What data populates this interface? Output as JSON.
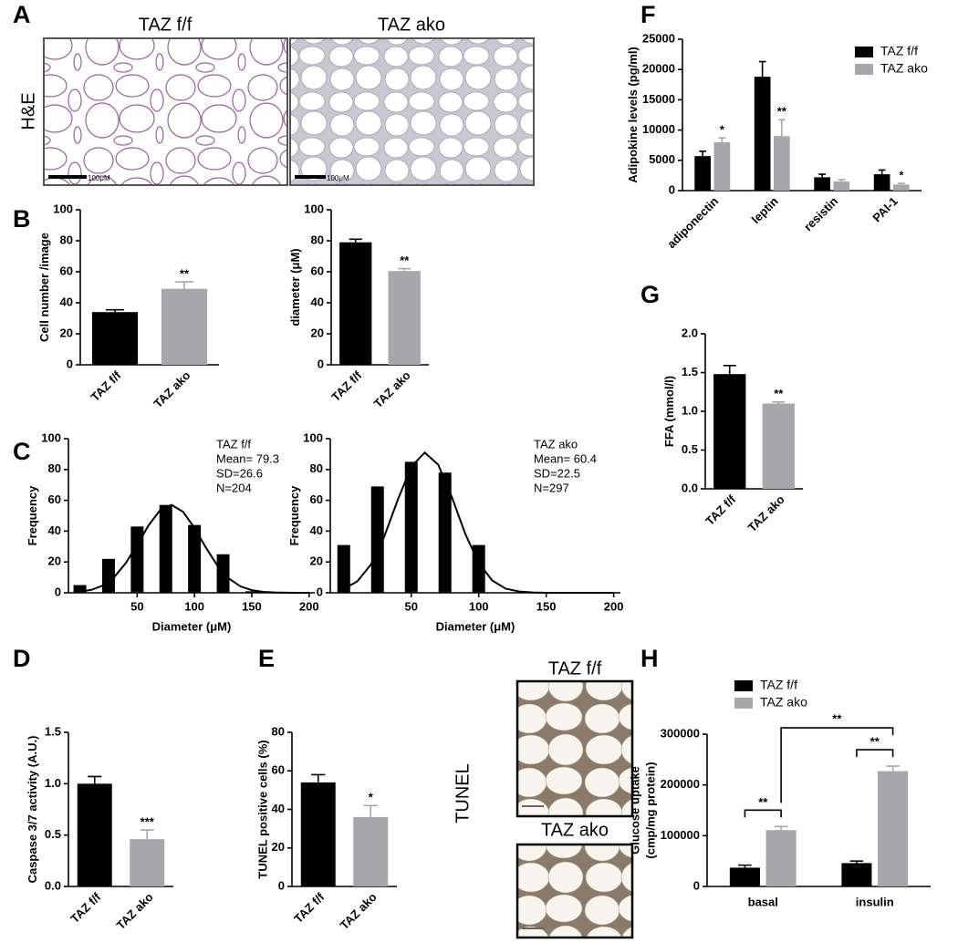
{
  "panel_labels": [
    "A",
    "B",
    "C",
    "D",
    "E",
    "F",
    "G",
    "H"
  ],
  "he_images": {
    "titles": [
      "TAZ f/f",
      "TAZ ako"
    ],
    "stain": "H&E",
    "scale_bars": [
      "100μM",
      "100μM"
    ]
  },
  "tunel_images": {
    "titles": [
      "TAZ f/f",
      "TAZ ako"
    ],
    "stain": "TUNEL"
  },
  "chart_data": [
    {
      "type": "bar",
      "categories": [
        "TAZ f/f",
        "TAZ ako"
      ],
      "values": [
        34,
        49
      ],
      "errors": [
        1.5,
        4.5
      ],
      "colors": [
        "#000000",
        "#a7a7ab"
      ],
      "significance": [
        null,
        "**"
      ],
      "ylabel": "Cell number /image",
      "ylim": [
        0,
        100
      ],
      "yticks": [
        0,
        20,
        40,
        60,
        80,
        100
      ]
    },
    {
      "type": "bar",
      "categories": [
        "TAZ f/f",
        "TAZ ako"
      ],
      "values": [
        79,
        60.5
      ],
      "errors": [
        2,
        1.5
      ],
      "colors": [
        "#000000",
        "#a7a7ab"
      ],
      "significance": [
        null,
        "**"
      ],
      "ylabel": "diameter (μM)",
      "ylim": [
        0,
        100
      ],
      "yticks": [
        0,
        20,
        40,
        60,
        80,
        100
      ]
    },
    {
      "type": "fitted_histogram",
      "x": [
        0,
        25,
        50,
        75,
        100,
        125,
        150
      ],
      "values": [
        5,
        22,
        43,
        57,
        44,
        25,
        1
      ],
      "color": "#000000",
      "fit": {
        "x": [
          0,
          10,
          20,
          30,
          40,
          50,
          60,
          70,
          80,
          90,
          100,
          110,
          120,
          130,
          140,
          150,
          160,
          170,
          180,
          190,
          200
        ],
        "values": [
          0.7,
          1.9,
          4.7,
          10.2,
          19.2,
          31.1,
          43.8,
          53.6,
          57,
          52.6,
          42.1,
          29.3,
          17.7,
          9.3,
          4.2,
          1.7,
          0.6,
          0.2,
          0.1,
          0,
          0
        ]
      },
      "annotation": [
        "TAZ f/f",
        "Mean= 79.3",
        "SD=26.6",
        "N=204"
      ],
      "xlabel": "Diameter (μM)",
      "ylabel": "Frequency",
      "xlim": [
        -10,
        205
      ],
      "xticks": [
        50,
        100,
        150,
        200
      ],
      "ylim": [
        0,
        100
      ],
      "yticks": [
        0,
        20,
        40,
        60,
        80,
        100
      ]
    },
    {
      "type": "fitted_histogram",
      "x": [
        0,
        25,
        50,
        75,
        100
      ],
      "values": [
        31,
        69,
        85,
        78,
        31
      ],
      "color": "#000000",
      "fit": {
        "x": [
          0,
          10,
          20,
          30,
          40,
          50,
          60,
          70,
          80,
          90,
          100,
          110,
          120,
          130,
          140,
          150,
          160,
          170,
          180,
          190,
          200
        ],
        "values": [
          2.5,
          7.4,
          18.2,
          36.5,
          60.3,
          81.8,
          91,
          83.1,
          62.3,
          38.3,
          19.3,
          8,
          2.7,
          0.8,
          0.2,
          0,
          0,
          0,
          0,
          0,
          0
        ]
      },
      "annotation": [
        "TAZ ako",
        "Mean= 60.4",
        "SD=22.5",
        "N=297"
      ],
      "xlabel": "Diameter (μM)",
      "ylabel": "Frequency",
      "xlim": [
        -10,
        205
      ],
      "xticks": [
        50,
        100,
        150,
        200
      ],
      "ylim": [
        0,
        100
      ],
      "yticks": [
        0,
        20,
        40,
        60,
        80,
        100
      ]
    },
    {
      "type": "bar",
      "categories": [
        "TAZ f/f",
        "TAZ ako"
      ],
      "values": [
        1,
        0.46
      ],
      "errors": [
        0.07,
        0.09
      ],
      "colors": [
        "#000000",
        "#a7a7ab"
      ],
      "significance": [
        null,
        "***"
      ],
      "ylabel": "Caspase 3/7 activity (A.U.)",
      "ylim": [
        0,
        1.5
      ],
      "yticks": [
        {
          "value": 0,
          "label": "0.0"
        },
        0.5,
        {
          "value": 1,
          "label": "1.0"
        },
        1.5
      ]
    },
    {
      "type": "bar",
      "categories": [
        "TAZ f/f",
        "TAZ ako"
      ],
      "values": [
        54,
        36
      ],
      "errors": [
        4,
        6
      ],
      "colors": [
        "#000000",
        "#a7a7ab"
      ],
      "significance": [
        null,
        "*"
      ],
      "ylabel": "TUNEL positive cells (%)",
      "ylim": [
        0,
        80
      ],
      "yticks": [
        0,
        20,
        40,
        60,
        80
      ]
    },
    {
      "type": "grouped_bar",
      "categories": [
        "adiponectin",
        "leptin",
        "resistin",
        "PAI-1"
      ],
      "series": [
        {
          "name": "TAZ f/f",
          "color": "#000000",
          "values": [
            5700,
            18800,
            2200,
            2700
          ],
          "errors": [
            800,
            2500,
            500,
            700
          ]
        },
        {
          "name": "TAZ ako",
          "color": "#a7a7ab",
          "values": [
            8000,
            9000,
            1500,
            1000
          ],
          "errors": [
            700,
            2700,
            300,
            200
          ],
          "significance": [
            "*",
            "**",
            null,
            "*"
          ]
        }
      ],
      "ylabel": "Adipokine levels (pg/ml)",
      "ylim": [
        0,
        25000
      ],
      "yticks": [
        0,
        5000,
        10000,
        15000,
        20000,
        25000
      ]
    },
    {
      "type": "bar",
      "categories": [
        "TAZ f/f",
        "TAZ ako"
      ],
      "values": [
        1.48,
        1.1
      ],
      "errors": [
        0.11,
        0.02
      ],
      "colors": [
        "#000000",
        "#a7a7ab"
      ],
      "significance": [
        null,
        "**"
      ],
      "ylabel": "FFA (mmol/l)",
      "ylim": [
        0,
        2
      ],
      "yticks": [
        {
          "value": 0,
          "label": "0.0"
        },
        0.5,
        {
          "value": 1,
          "label": "1.0"
        },
        1.5,
        {
          "value": 2,
          "label": "2.0"
        }
      ]
    },
    {
      "type": "grouped_bar",
      "categories": [
        "basal",
        "insulin"
      ],
      "series": [
        {
          "name": "TAZ f/f",
          "color": "#000000",
          "values": [
            37000,
            46000
          ],
          "errors": [
            5000,
            4000
          ]
        },
        {
          "name": "TAZ ako",
          "color": "#a7a7ab",
          "values": [
            111000,
            227000
          ],
          "errors": [
            7000,
            10000
          ],
          "significance": [
            "**",
            "**"
          ]
        }
      ],
      "significance_style": "bracket",
      "cross_group_significance": "**",
      "ylabel": [
        "Glucose uptake",
        "(cmp/mg protein)"
      ],
      "ylim": [
        0,
        300000
      ],
      "yticks": [
        0,
        100000,
        200000,
        300000
      ]
    }
  ]
}
